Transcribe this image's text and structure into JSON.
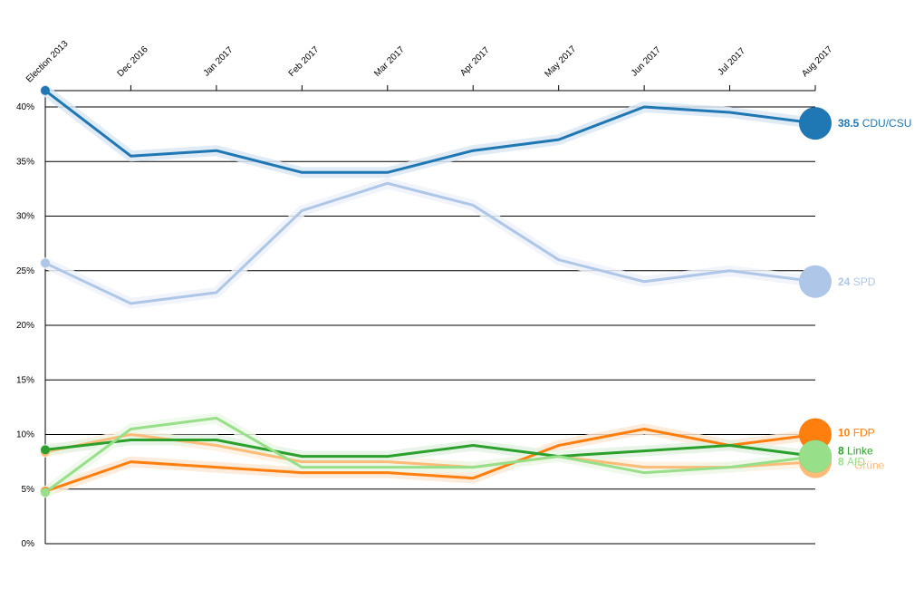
{
  "chart_data": {
    "type": "line",
    "title": "",
    "xlabel": "",
    "ylabel": "",
    "ylim": [
      0,
      40
    ],
    "y_ticks": [
      0,
      5,
      10,
      15,
      20,
      25,
      30,
      35,
      40
    ],
    "y_tick_labels": [
      "0%",
      "5%",
      "10%",
      "15%",
      "20%",
      "25%",
      "30%",
      "35%",
      "40%"
    ],
    "grid": "horizontal",
    "categories": [
      "Election 2013",
      "Dec 2016",
      "Jan 2017",
      "Feb 2017",
      "Mar 2017",
      "Apr 2017",
      "May 2017",
      "Jun 2017",
      "Jul 2017",
      "Aug 2017"
    ],
    "series": [
      {
        "name": "CDU/CSU",
        "end_label": "38.5",
        "color": "#1f77b4",
        "halo": "#dbe8f5",
        "values": [
          41.5,
          35.5,
          36,
          34,
          34,
          36,
          37,
          40,
          39.5,
          38.5
        ]
      },
      {
        "name": "SPD",
        "end_label": "24",
        "color": "#aec7e8",
        "halo": "#eef3fa",
        "values": [
          25.7,
          22,
          23,
          30.5,
          33,
          31,
          26,
          24,
          25,
          24
        ]
      },
      {
        "name": "Grüne",
        "end_label": "",
        "color": "#ffbb78",
        "halo": "#fff1e0",
        "values": [
          8.4,
          10,
          9,
          7.5,
          7.5,
          7,
          8,
          7,
          7,
          7.5
        ]
      },
      {
        "name": "Linke",
        "end_label": "8",
        "color": "#2ca02c",
        "halo": "#e3f2e3",
        "values": [
          8.6,
          9.5,
          9.5,
          8,
          8,
          9,
          8,
          8.5,
          9,
          8
        ]
      },
      {
        "name": "FDP",
        "end_label": "10",
        "color": "#ff7f0e",
        "halo": "#fde9d6",
        "values": [
          4.8,
          7.5,
          7,
          6.5,
          6.5,
          6,
          9,
          10.5,
          9,
          10
        ]
      },
      {
        "name": "AfD",
        "end_label": "8",
        "color": "#98df8a",
        "halo": "#ecf8e9",
        "values": [
          4.7,
          10.5,
          11.5,
          7,
          7,
          7,
          8,
          6.5,
          7,
          8
        ]
      }
    ]
  }
}
